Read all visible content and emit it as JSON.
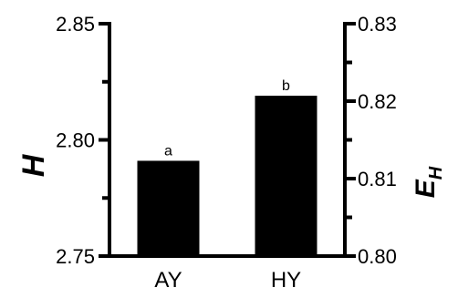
{
  "chart_data": {
    "type": "bar",
    "categories": [
      "AY",
      "HY"
    ],
    "values": [
      2.791,
      2.819
    ],
    "annotations": [
      "a",
      "b"
    ],
    "bar_color": "#000000",
    "ylabel": "H",
    "ylim": [
      2.75,
      2.85
    ],
    "yticks": [
      "2.75",
      "2.80",
      "2.85"
    ],
    "y2label_main": "E",
    "y2label_sub": "H",
    "y2lim": [
      0.8,
      0.83
    ],
    "y2ticks": [
      "0.80",
      "0.81",
      "0.82",
      "0.83"
    ],
    "grid": false,
    "legend": "none"
  }
}
